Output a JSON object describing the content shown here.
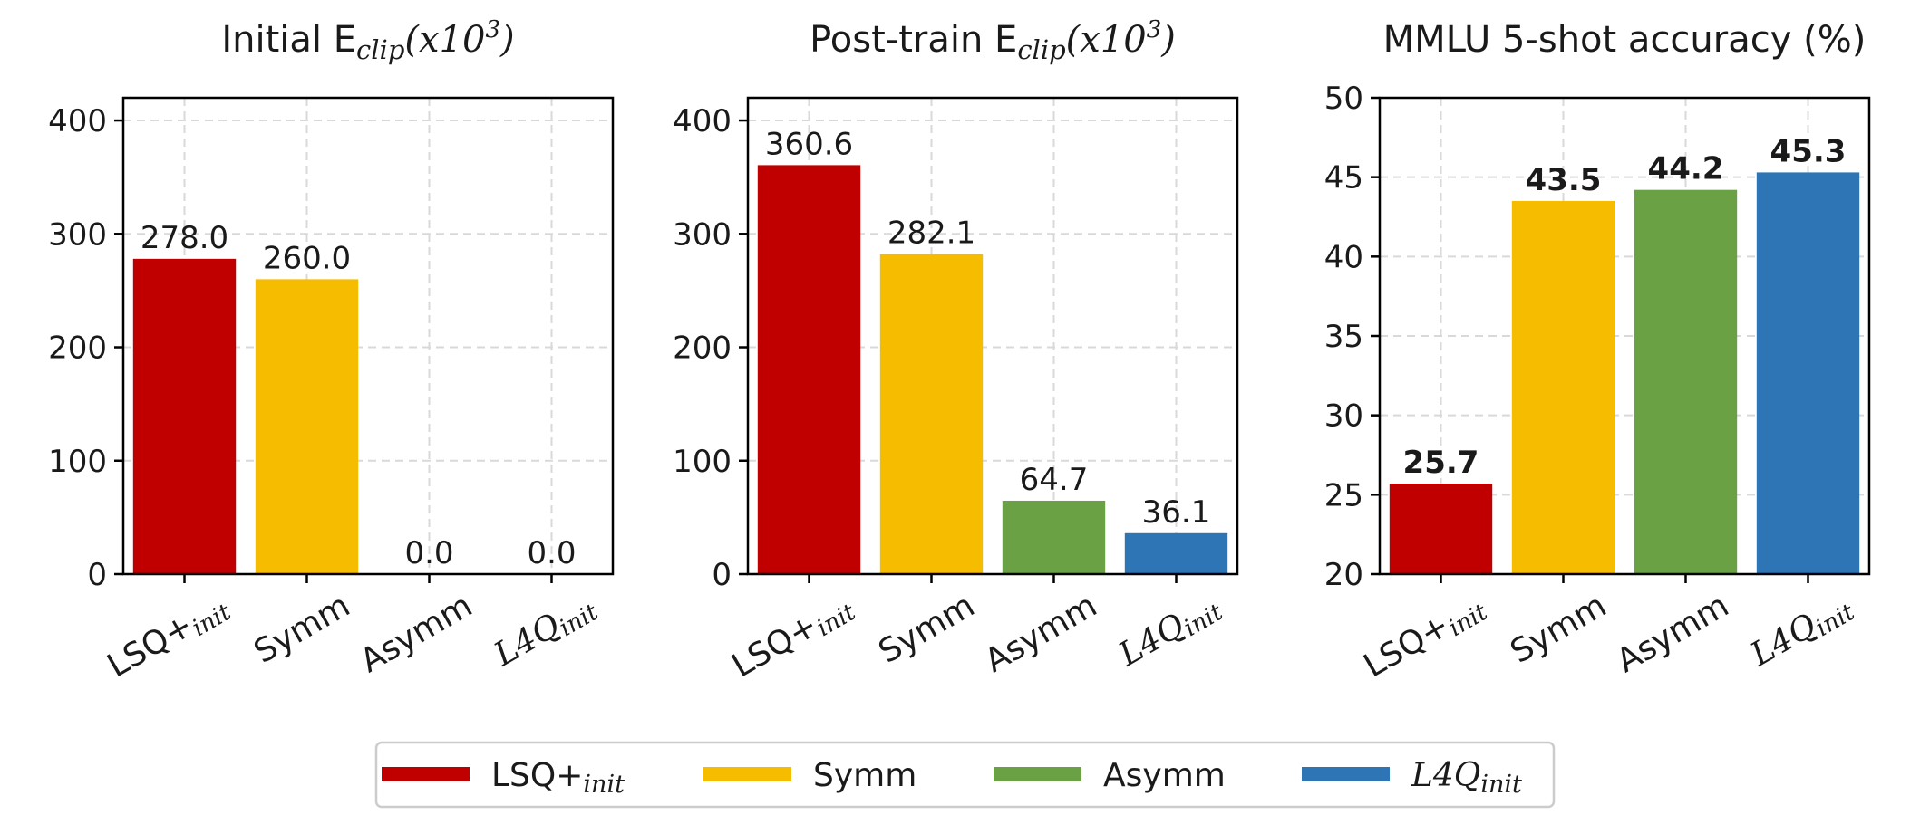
{
  "chart_data": [
    {
      "type": "bar",
      "title": {
        "main": "Initial E",
        "sub": "clip",
        "rest": "(x10",
        "sup": "3",
        "end": ")"
      },
      "categories": [
        {
          "main": "LSQ+",
          "sub": "init"
        },
        {
          "main": "Symm",
          "sub": ""
        },
        {
          "main": "Asymm",
          "sub": ""
        },
        {
          "main": "L4Q",
          "sub": "init",
          "italic": true
        }
      ],
      "values": [
        278.0,
        260.0,
        0.0,
        0.0
      ],
      "labels": [
        "278.0",
        "260.0",
        "0.0",
        "0.0"
      ],
      "colors": [
        "#c00000",
        "#f6bd00",
        "#6aa145",
        "#2e75b6"
      ],
      "ylim": [
        0,
        420
      ],
      "yticks": [
        "0",
        "100",
        "200",
        "300",
        "400"
      ],
      "bold_labels": false,
      "grid": true
    },
    {
      "type": "bar",
      "title": {
        "main": "Post-train E",
        "sub": "clip",
        "rest": "(x10",
        "sup": "3",
        "end": ")"
      },
      "categories": [
        {
          "main": "LSQ+",
          "sub": "init"
        },
        {
          "main": "Symm",
          "sub": ""
        },
        {
          "main": "Asymm",
          "sub": ""
        },
        {
          "main": "L4Q",
          "sub": "init",
          "italic": true
        }
      ],
      "values": [
        360.6,
        282.1,
        64.7,
        36.1
      ],
      "labels": [
        "360.6",
        "282.1",
        "64.7",
        "36.1"
      ],
      "colors": [
        "#c00000",
        "#f6bd00",
        "#6aa145",
        "#2e75b6"
      ],
      "ylim": [
        0,
        420
      ],
      "yticks": [
        "0",
        "100",
        "200",
        "300",
        "400"
      ],
      "bold_labels": false,
      "grid": true
    },
    {
      "type": "bar",
      "title": {
        "main": "MMLU 5-shot accuracy (%)",
        "sub": "",
        "rest": "",
        "sup": "",
        "end": ""
      },
      "categories": [
        {
          "main": "LSQ+",
          "sub": "init"
        },
        {
          "main": "Symm",
          "sub": ""
        },
        {
          "main": "Asymm",
          "sub": ""
        },
        {
          "main": "L4Q",
          "sub": "init",
          "italic": true
        }
      ],
      "values": [
        25.7,
        43.5,
        44.2,
        45.3
      ],
      "labels": [
        "25.7",
        "43.5",
        "44.2",
        "45.3"
      ],
      "colors": [
        "#c00000",
        "#f6bd00",
        "#6aa145",
        "#2e75b6"
      ],
      "ylim": [
        20,
        50
      ],
      "yticks": [
        "20",
        "25",
        "30",
        "35",
        "40",
        "45",
        "50"
      ],
      "bold_labels": true,
      "grid": true
    }
  ],
  "legend": {
    "position": "bottom-center",
    "entries": [
      {
        "main": "LSQ+",
        "sub": "init",
        "color": "#c00000"
      },
      {
        "main": "Symm",
        "sub": "",
        "color": "#f6bd00"
      },
      {
        "main": "Asymm",
        "sub": "",
        "color": "#6aa145"
      },
      {
        "main": "L4Q",
        "sub": "init",
        "italic": true,
        "color": "#2e75b6"
      }
    ]
  }
}
